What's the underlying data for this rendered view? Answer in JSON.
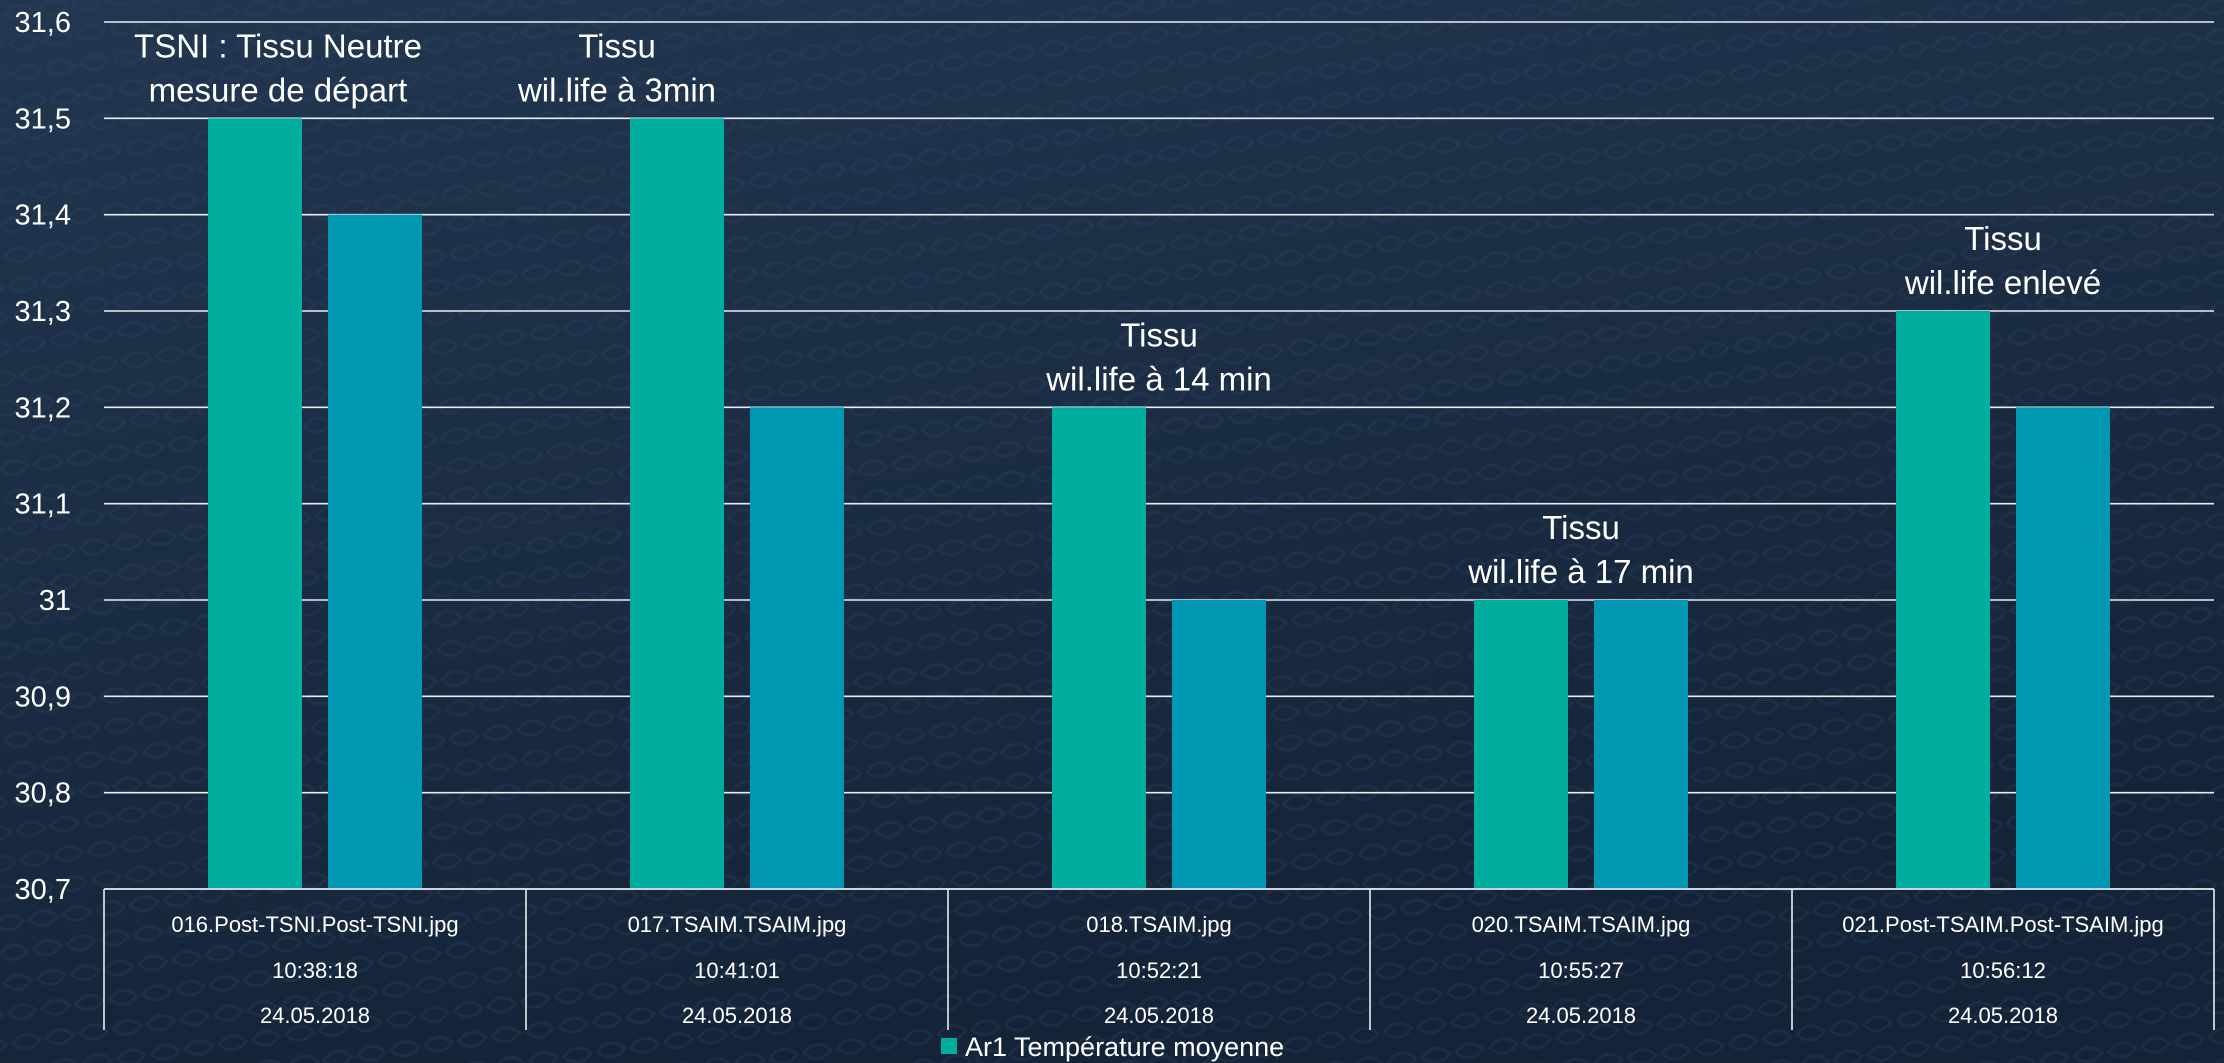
{
  "colors": {
    "background_top": "#223650",
    "background_bottom": "#142337",
    "gridline": "#e8edf2",
    "text": "#ffffff",
    "series_1": "#00aea0",
    "series_2": "#0097b2"
  },
  "chart_data": {
    "type": "bar",
    "title": "",
    "xlabel": "",
    "ylabel": "",
    "ylim": [
      30.7,
      31.6
    ],
    "yticks": [
      "31,6",
      "31,5",
      "31,4",
      "31,3",
      "31,2",
      "31,1",
      "31",
      "30,9",
      "30,8",
      "30,7"
    ],
    "ytick_values": [
      31.6,
      31.5,
      31.4,
      31.3,
      31.2,
      31.1,
      31.0,
      30.9,
      30.8,
      30.7
    ],
    "grid": true,
    "legend_position": "bottom",
    "legend": [
      "Ar1 Température moyenne"
    ],
    "categories": [
      {
        "file": "016.Post-TSNI.Post-TSNI.jpg",
        "time": "10:38:18",
        "date": "24.05.2018"
      },
      {
        "file": "017.TSAIM.TSAIM.jpg",
        "time": "10:41:01",
        "date": "24.05.2018"
      },
      {
        "file": "018.TSAIM.jpg",
        "time": "10:52:21",
        "date": "24.05.2018"
      },
      {
        "file": "020.TSAIM.TSAIM.jpg",
        "time": "10:55:27",
        "date": "24.05.2018"
      },
      {
        "file": "021.Post-TSAIM.Post-TSAIM.jpg",
        "time": "10:56:12",
        "date": "24.05.2018"
      }
    ],
    "series": [
      {
        "name": "Ar1 Température moyenne",
        "values": [
          31.5,
          31.5,
          31.2,
          31.0,
          31.3
        ]
      },
      {
        "values": [
          31.4,
          31.2,
          31.0,
          31.0,
          31.2
        ]
      }
    ],
    "annotations": [
      [
        "TSNI : Tissu Neutre",
        "mesure de départ"
      ],
      [
        "Tissu",
        "wil.life à 3min"
      ],
      [
        "Tissu",
        "wil.life à 14 min"
      ],
      [
        "Tissu",
        "wil.life à 17 min"
      ],
      [
        "Tissu",
        "wil.life enlevé"
      ]
    ]
  }
}
